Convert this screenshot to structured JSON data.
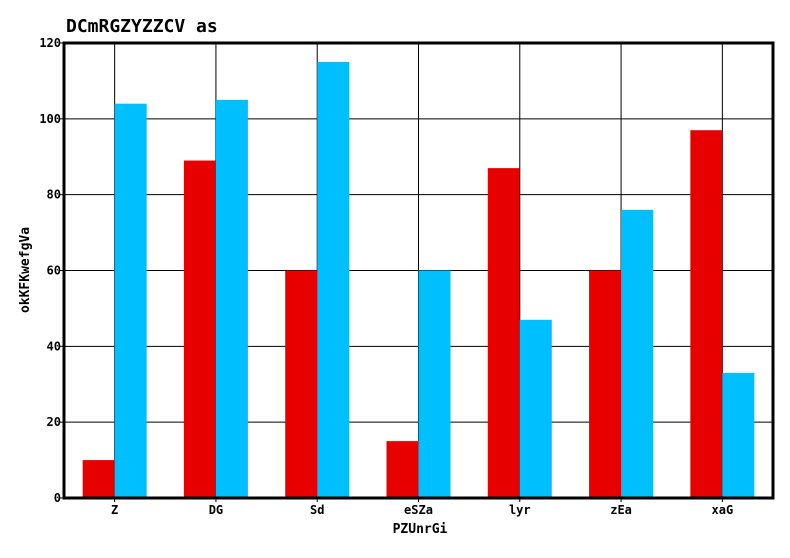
{
  "chart_data": {
    "type": "bar",
    "title": "DCmRGZYZZCV as",
    "xlabel": "PZUnrGi",
    "ylabel": "okKFKwefgVa",
    "categories": [
      "Z",
      "DG",
      "Sd",
      "eSZa",
      "lyr",
      "zEa",
      "xaG"
    ],
    "series": [
      {
        "values": [
          10,
          89,
          60,
          15,
          87,
          60,
          97
        ],
        "color": "#e60000"
      },
      {
        "values": [
          104,
          105,
          115,
          60,
          47,
          76,
          33
        ],
        "color": "#00bfff"
      }
    ],
    "ylim": [
      0,
      120
    ],
    "yticks": [
      0,
      20,
      40,
      60,
      80,
      100,
      120
    ],
    "grid": true,
    "legend": "none"
  }
}
